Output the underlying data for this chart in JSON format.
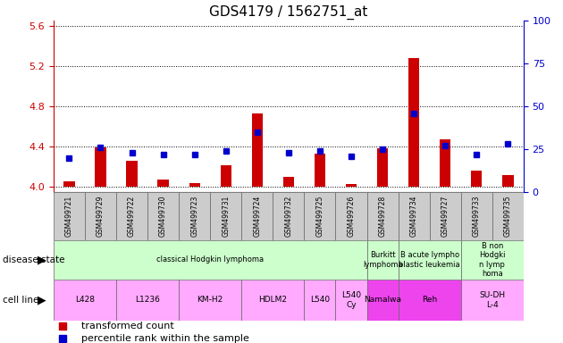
{
  "title": "GDS4179 / 1562751_at",
  "samples": [
    "GSM499721",
    "GSM499729",
    "GSM499722",
    "GSM499730",
    "GSM499723",
    "GSM499731",
    "GSM499724",
    "GSM499732",
    "GSM499725",
    "GSM499726",
    "GSM499728",
    "GSM499734",
    "GSM499727",
    "GSM499733",
    "GSM499735"
  ],
  "transformed_count": [
    4.06,
    4.39,
    4.26,
    4.07,
    4.04,
    4.22,
    4.73,
    4.1,
    4.33,
    4.03,
    4.38,
    5.28,
    4.47,
    4.16,
    4.12
  ],
  "percentile_rank": [
    20,
    26,
    23,
    22,
    22,
    24,
    35,
    23,
    24,
    21,
    25,
    46,
    27,
    22,
    28
  ],
  "ylim_left": [
    3.95,
    5.65
  ],
  "ylim_right": [
    0,
    100
  ],
  "yticks_left": [
    4.0,
    4.4,
    4.8,
    5.2,
    5.6
  ],
  "yticks_right": [
    0,
    25,
    50,
    75,
    100
  ],
  "bar_color": "#cc0000",
  "dot_color": "#0000cc",
  "bar_bottom": 4.0,
  "disease_state_groups": [
    {
      "label": "classical Hodgkin lymphoma",
      "start": 0,
      "end": 10,
      "color": "#ccffcc"
    },
    {
      "label": "Burkitt\nlymphoma",
      "start": 10,
      "end": 11,
      "color": "#ccffcc"
    },
    {
      "label": "B acute lympho\nblastic leukemia",
      "start": 11,
      "end": 13,
      "color": "#ccffcc"
    },
    {
      "label": "B non\nHodgki\nn lymp\nhoma",
      "start": 13,
      "end": 15,
      "color": "#ccffcc"
    }
  ],
  "cell_line_groups": [
    {
      "label": "L428",
      "start": 0,
      "end": 2,
      "color": "#ffaaff"
    },
    {
      "label": "L1236",
      "start": 2,
      "end": 4,
      "color": "#ffaaff"
    },
    {
      "label": "KM-H2",
      "start": 4,
      "end": 6,
      "color": "#ffaaff"
    },
    {
      "label": "HDLM2",
      "start": 6,
      "end": 8,
      "color": "#ffaaff"
    },
    {
      "label": "L540",
      "start": 8,
      "end": 9,
      "color": "#ffaaff"
    },
    {
      "label": "L540\nCy",
      "start": 9,
      "end": 10,
      "color": "#ffaaff"
    },
    {
      "label": "Namalwa",
      "start": 10,
      "end": 11,
      "color": "#ee44ee"
    },
    {
      "label": "Reh",
      "start": 11,
      "end": 13,
      "color": "#ee44ee"
    },
    {
      "label": "SU-DH\nL-4",
      "start": 13,
      "end": 15,
      "color": "#ffaaff"
    }
  ],
  "legend_items": [
    {
      "label": "transformed count",
      "color": "#cc0000"
    },
    {
      "label": "percentile rank within the sample",
      "color": "#0000cc"
    }
  ],
  "bg_color": "#ffffff",
  "plot_bg": "#ffffff",
  "axis_color_left": "#cc0000",
  "axis_color_right": "#0000cc",
  "sample_bg_color": "#cccccc"
}
